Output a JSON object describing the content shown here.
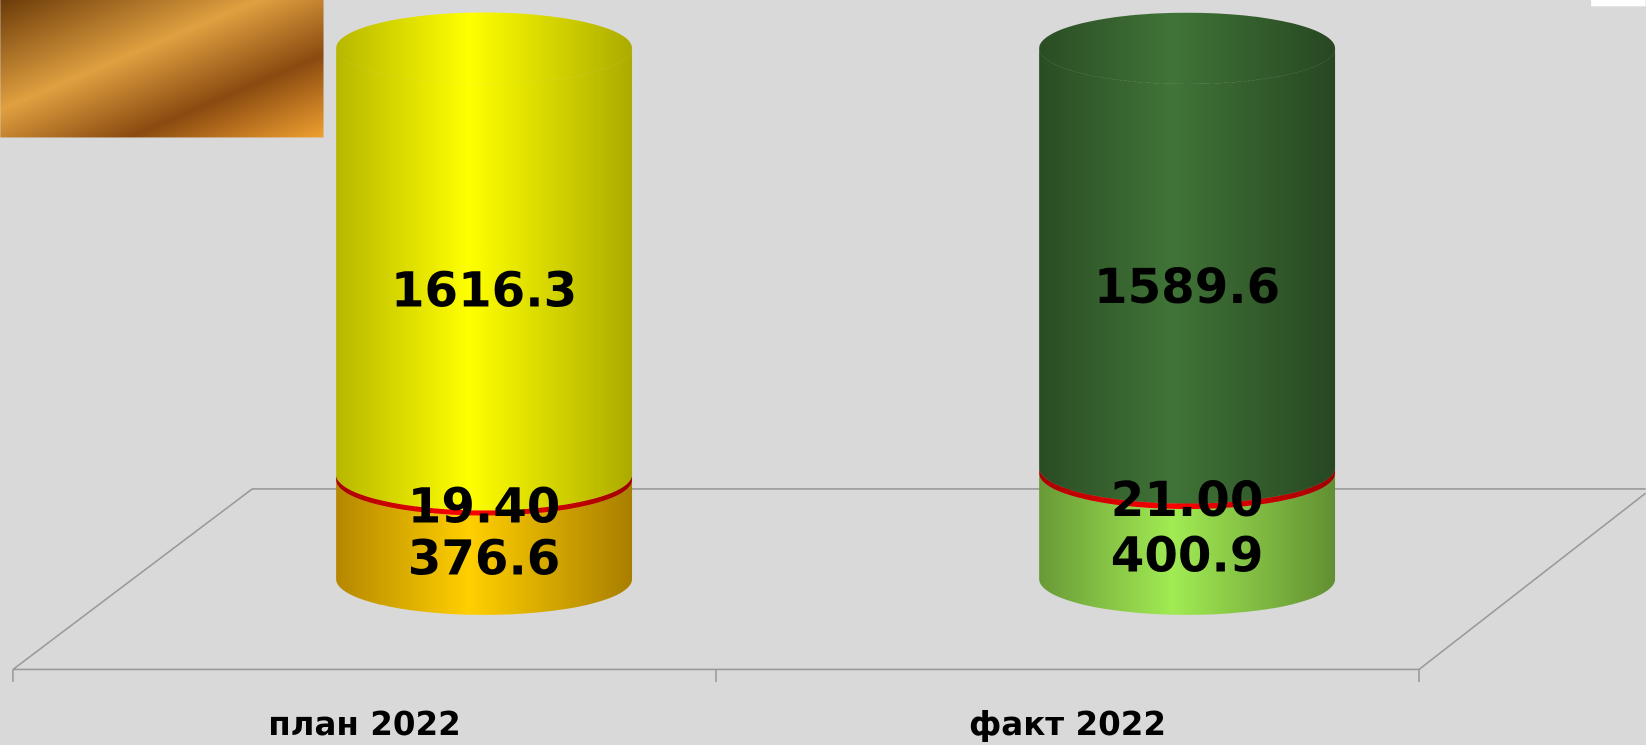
{
  "chart_data": {
    "type": "cylinder",
    "categories": [
      "план 2022",
      "факт 2022"
    ],
    "series": [
      {
        "colors": [
          "#f0b400",
          "#8ccc48"
        ],
        "values": [
          376.6,
          400.9
        ]
      },
      {
        "colors": [
          "#e00000",
          "#e00000"
        ],
        "values": [
          19.4,
          21.0
        ],
        "value_labels": [
          "19.40",
          "21.00"
        ]
      },
      {
        "colors": [
          "#f4f400",
          "#386530"
        ],
        "values": [
          1616.3,
          1589.6
        ]
      }
    ]
  }
}
